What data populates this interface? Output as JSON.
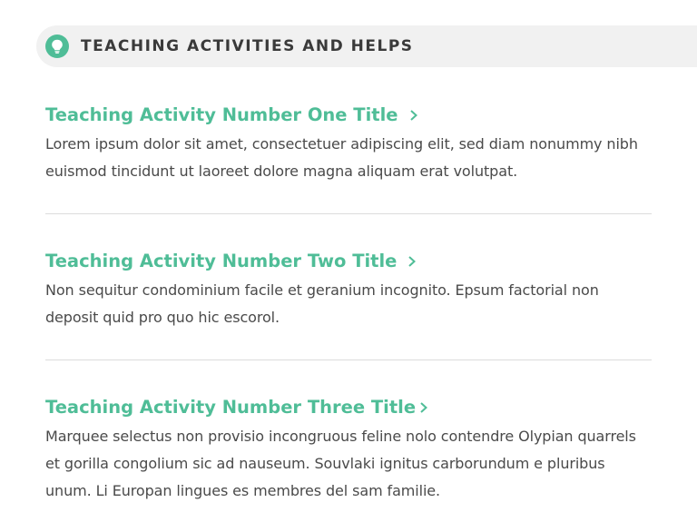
{
  "header": {
    "title": "TEACHING ACTIVITIES AND HELPS",
    "icon": "lightbulb-icon",
    "accent_color": "#4fbd97",
    "background_color": "#f1f1f1"
  },
  "activities": [
    {
      "title": "Teaching Activity Number One Title",
      "description": "Lorem ipsum dolor sit amet, consectetuer adipiscing elit, sed diam nonummy nibh euismod tincidunt ut laoreet dolore magna aliquam erat volutpat."
    },
    {
      "title": "Teaching Activity Number Two Title",
      "description": "Non sequitur condominium facile et geranium incognito. Epsum factorial non deposit quid pro quo hic escorol."
    },
    {
      "title": "Teaching Activity Number Three Title",
      "description": "Marquee selectus non provisio incongruous feline nolo contendre Olypian quarrels et gorilla congolium sic ad nauseum. Souvlaki ignitus carborundum e pluribus unum. Li Europan lingues es membres del sam familie."
    }
  ]
}
